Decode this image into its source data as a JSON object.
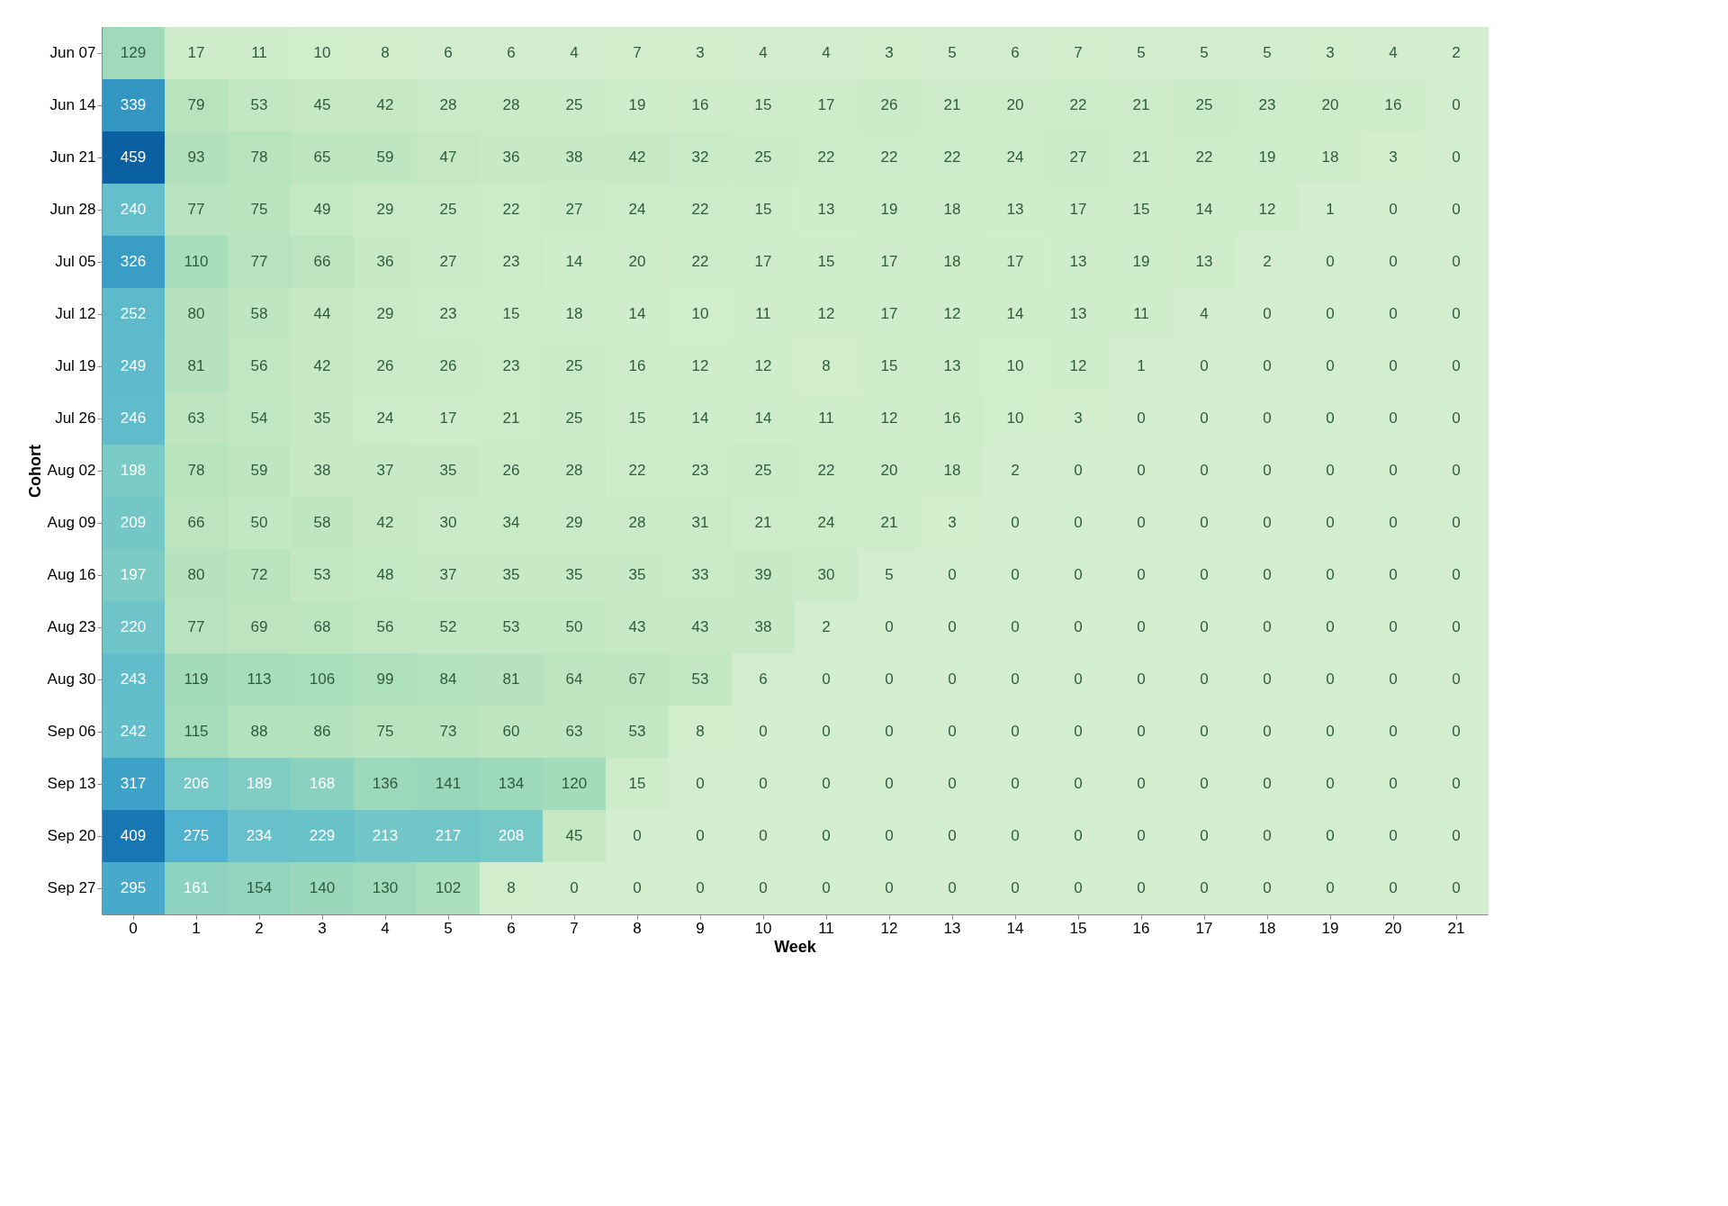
{
  "chart_data": {
    "type": "heatmap",
    "xlabel": "Week",
    "ylabel": "Cohort",
    "categories": [
      "0",
      "1",
      "2",
      "3",
      "4",
      "5",
      "6",
      "7",
      "8",
      "9",
      "10",
      "11",
      "12",
      "13",
      "14",
      "15",
      "16",
      "17",
      "18",
      "19",
      "20",
      "21"
    ],
    "y_categories": [
      "Jun 07",
      "Jun 14",
      "Jun 21",
      "Jun 28",
      "Jul 05",
      "Jul 12",
      "Jul 19",
      "Jul 26",
      "Aug 02",
      "Aug 09",
      "Aug 16",
      "Aug 23",
      "Aug 30",
      "Sep 06",
      "Sep 13",
      "Sep 20",
      "Sep 27"
    ],
    "cells": [
      [
        129,
        17,
        11,
        10,
        8,
        6,
        6,
        4,
        7,
        3,
        4,
        4,
        3,
        5,
        6,
        7,
        5,
        5,
        5,
        3,
        4,
        2
      ],
      [
        339,
        79,
        53,
        45,
        42,
        28,
        28,
        25,
        19,
        16,
        15,
        17,
        26,
        21,
        20,
        22,
        21,
        25,
        23,
        20,
        16,
        0
      ],
      [
        459,
        93,
        78,
        65,
        59,
        47,
        36,
        38,
        42,
        32,
        25,
        22,
        22,
        22,
        24,
        27,
        21,
        22,
        19,
        18,
        3,
        0
      ],
      [
        240,
        77,
        75,
        49,
        29,
        25,
        22,
        27,
        24,
        22,
        15,
        13,
        19,
        18,
        13,
        17,
        15,
        14,
        12,
        1,
        0,
        0
      ],
      [
        326,
        110,
        77,
        66,
        36,
        27,
        23,
        14,
        20,
        22,
        17,
        15,
        17,
        18,
        17,
        13,
        19,
        13,
        2,
        0,
        0,
        0
      ],
      [
        252,
        80,
        58,
        44,
        29,
        23,
        15,
        18,
        14,
        10,
        11,
        12,
        17,
        12,
        14,
        13,
        11,
        4,
        0,
        0,
        0,
        0
      ],
      [
        249,
        81,
        56,
        42,
        26,
        26,
        23,
        25,
        16,
        12,
        12,
        8,
        15,
        13,
        10,
        12,
        1,
        0,
        0,
        0,
        0,
        0
      ],
      [
        246,
        63,
        54,
        35,
        24,
        17,
        21,
        25,
        15,
        14,
        14,
        11,
        12,
        16,
        10,
        3,
        0,
        0,
        0,
        0,
        0,
        0
      ],
      [
        198,
        78,
        59,
        38,
        37,
        35,
        26,
        28,
        22,
        23,
        25,
        22,
        20,
        18,
        2,
        0,
        0,
        0,
        0,
        0,
        0,
        0
      ],
      [
        209,
        66,
        50,
        58,
        42,
        30,
        34,
        29,
        28,
        31,
        21,
        24,
        21,
        3,
        0,
        0,
        0,
        0,
        0,
        0,
        0,
        0
      ],
      [
        197,
        80,
        72,
        53,
        48,
        37,
        35,
        35,
        35,
        33,
        39,
        30,
        5,
        0,
        0,
        0,
        0,
        0,
        0,
        0,
        0,
        0
      ],
      [
        220,
        77,
        69,
        68,
        56,
        52,
        53,
        50,
        43,
        43,
        38,
        2,
        0,
        0,
        0,
        0,
        0,
        0,
        0,
        0,
        0,
        0
      ],
      [
        243,
        119,
        113,
        106,
        99,
        84,
        81,
        64,
        67,
        53,
        6,
        0,
        0,
        0,
        0,
        0,
        0,
        0,
        0,
        0,
        0,
        0
      ],
      [
        242,
        115,
        88,
        86,
        75,
        73,
        60,
        63,
        53,
        8,
        0,
        0,
        0,
        0,
        0,
        0,
        0,
        0,
        0,
        0,
        0,
        0
      ],
      [
        317,
        206,
        189,
        168,
        136,
        141,
        134,
        120,
        15,
        0,
        0,
        0,
        0,
        0,
        0,
        0,
        0,
        0,
        0,
        0,
        0,
        0
      ],
      [
        409,
        275,
        234,
        229,
        213,
        217,
        208,
        45,
        0,
        0,
        0,
        0,
        0,
        0,
        0,
        0,
        0,
        0,
        0,
        0,
        0,
        0
      ],
      [
        295,
        161,
        154,
        140,
        130,
        102,
        8,
        0,
        0,
        0,
        0,
        0,
        0,
        0,
        0,
        0,
        0,
        0,
        0,
        0,
        0,
        0
      ]
    ],
    "data_labels": true
  }
}
